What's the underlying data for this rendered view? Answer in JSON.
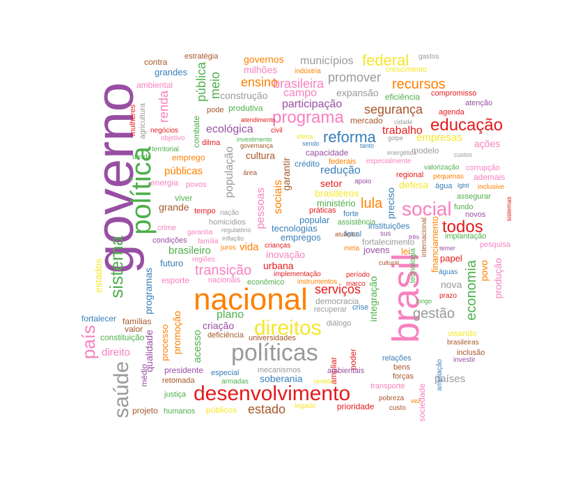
{
  "palette": {
    "purple": "#984ea3",
    "orange": "#ff7f00",
    "red": "#e41a1c",
    "green": "#4daf4a",
    "pink": "#f781bf",
    "blue": "#377eb8",
    "brown": "#a65628",
    "gray": "#999999",
    "yellow": "#f5e62a"
  },
  "words": [
    {
      "text": "governo",
      "color": "purple"
    },
    {
      "text": "nacional",
      "color": "orange"
    },
    {
      "text": "brasil",
      "color": "pink"
    },
    {
      "text": "desenvolvimento",
      "color": "red"
    },
    {
      "text": "política",
      "color": "green"
    },
    {
      "text": "políticas",
      "color": "gray"
    },
    {
      "text": "direitos",
      "color": "yellow"
    },
    {
      "text": "saúde",
      "color": "gray"
    },
    {
      "text": "sistema",
      "color": "green"
    },
    {
      "text": "social",
      "color": "pink"
    },
    {
      "text": "educação",
      "color": "red"
    },
    {
      "text": "programa",
      "color": "pink"
    },
    {
      "text": "reforma",
      "color": "blue"
    },
    {
      "text": "federal",
      "color": "yellow"
    },
    {
      "text": "todos",
      "color": "red"
    },
    {
      "text": "lula",
      "color": "orange"
    },
    {
      "text": "país",
      "color": "pink"
    },
    {
      "text": "recursos",
      "color": "orange"
    },
    {
      "text": "economia",
      "color": "green"
    },
    {
      "text": "transição",
      "color": "pink"
    },
    {
      "text": "gestão",
      "color": "gray"
    },
    {
      "text": "estado",
      "color": "brown"
    },
    {
      "text": "segurança",
      "color": "brown"
    },
    {
      "text": "promover",
      "color": "gray"
    },
    {
      "text": "renda",
      "color": "pink"
    },
    {
      "text": "brasileira",
      "color": "pink"
    },
    {
      "text": "ensino",
      "color": "orange"
    },
    {
      "text": "serviços",
      "color": "red"
    },
    {
      "text": "pública",
      "color": "green"
    },
    {
      "text": "meio",
      "color": "green"
    },
    {
      "text": "campo",
      "color": "pink"
    },
    {
      "text": "municípios",
      "color": "gray"
    },
    {
      "text": "governos",
      "color": "orange"
    },
    {
      "text": "milhões",
      "color": "pink"
    },
    {
      "text": "participação",
      "color": "purple"
    },
    {
      "text": "expansão",
      "color": "gray"
    },
    {
      "text": "construção",
      "color": "gray"
    },
    {
      "text": "ecológica",
      "color": "purple"
    },
    {
      "text": "trabalho",
      "color": "red"
    },
    {
      "text": "empresas",
      "color": "yellow"
    },
    {
      "text": "ações",
      "color": "pink"
    },
    {
      "text": "mercado",
      "color": "brown"
    },
    {
      "text": "cultura",
      "color": "brown"
    },
    {
      "text": "redução",
      "color": "blue"
    },
    {
      "text": "setor",
      "color": "red"
    },
    {
      "text": "sociais",
      "color": "orange"
    },
    {
      "text": "pessoas",
      "color": "pink"
    },
    {
      "text": "população",
      "color": "gray"
    },
    {
      "text": "garantir",
      "color": "brown"
    },
    {
      "text": "públicas",
      "color": "orange"
    },
    {
      "text": "grande",
      "color": "brown"
    },
    {
      "text": "brasileiros",
      "color": "yellow"
    },
    {
      "text": "defesa",
      "color": "yellow"
    },
    {
      "text": "preciso",
      "color": "blue"
    },
    {
      "text": "vida",
      "color": "orange"
    },
    {
      "text": "brasileiro",
      "color": "green"
    },
    {
      "text": "inovação",
      "color": "pink"
    },
    {
      "text": "urbana",
      "color": "red"
    },
    {
      "text": "plano",
      "color": "green"
    },
    {
      "text": "criação",
      "color": "purple"
    },
    {
      "text": "futuro",
      "color": "blue"
    },
    {
      "text": "estados",
      "color": "yellow"
    },
    {
      "text": "programas",
      "color": "blue"
    },
    {
      "text": "produção",
      "color": "pink"
    },
    {
      "text": "países",
      "color": "gray"
    },
    {
      "text": "soberania",
      "color": "blue"
    },
    {
      "text": "qualidade",
      "color": "purple"
    },
    {
      "text": "nova",
      "color": "gray"
    },
    {
      "text": "povo",
      "color": "orange"
    },
    {
      "text": "direito",
      "color": "pink"
    },
    {
      "text": "acesso",
      "color": "green"
    },
    {
      "text": "promoção",
      "color": "orange"
    },
    {
      "text": "processo",
      "color": "orange"
    },
    {
      "text": "integração",
      "color": "green"
    },
    {
      "text": "financiamento",
      "color": "orange"
    },
    {
      "text": "tecnologias",
      "color": "blue"
    },
    {
      "text": "empregos",
      "color": "blue"
    },
    {
      "text": "ministério",
      "color": "green"
    },
    {
      "text": "popular",
      "color": "blue"
    },
    {
      "text": "instituições",
      "color": "blue"
    },
    {
      "text": "fortalecimento",
      "color": "gray"
    },
    {
      "text": "jovens",
      "color": "purple"
    },
    {
      "text": "lei",
      "color": "orange"
    },
    {
      "text": "papel",
      "color": "red"
    },
    {
      "text": "ambiental",
      "color": "pink"
    },
    {
      "text": "grandes",
      "color": "blue"
    },
    {
      "text": "contra",
      "color": "brown"
    },
    {
      "text": "estratégia",
      "color": "brown"
    },
    {
      "text": "gastos",
      "color": "gray"
    },
    {
      "text": "crescimento",
      "color": "yellow"
    },
    {
      "text": "eficiência",
      "color": "green"
    },
    {
      "text": "compromisso",
      "color": "red"
    },
    {
      "text": "atenção",
      "color": "purple"
    },
    {
      "text": "agenda",
      "color": "red"
    },
    {
      "text": "indústria",
      "color": "orange"
    },
    {
      "text": "produtiva",
      "color": "green"
    },
    {
      "text": "pode",
      "color": "brown"
    },
    {
      "text": "mulheres",
      "color": "red"
    },
    {
      "text": "agricultura",
      "color": "gray"
    },
    {
      "text": "combate",
      "color": "green"
    },
    {
      "text": "capacidade",
      "color": "purple"
    },
    {
      "text": "crédito",
      "color": "blue"
    },
    {
      "text": "federais",
      "color": "orange"
    },
    {
      "text": "modelo",
      "color": "gray"
    },
    {
      "text": "regional",
      "color": "red"
    },
    {
      "text": "água",
      "color": "blue"
    },
    {
      "text": "valorização",
      "color": "green"
    },
    {
      "text": "corrupção",
      "color": "pink"
    },
    {
      "text": "ademais",
      "color": "pink"
    },
    {
      "text": "assegurar",
      "color": "green"
    },
    {
      "text": "fundo",
      "color": "green"
    },
    {
      "text": "novos",
      "color": "purple"
    },
    {
      "text": "implantação",
      "color": "green"
    },
    {
      "text": "pesquisa",
      "color": "pink"
    },
    {
      "text": "emprego",
      "color": "orange"
    },
    {
      "text": "energia",
      "color": "pink"
    },
    {
      "text": "povos",
      "color": "pink"
    },
    {
      "text": "viver",
      "color": "green"
    },
    {
      "text": "tempo",
      "color": "red"
    },
    {
      "text": "homicídios",
      "color": "gray"
    },
    {
      "text": "crime",
      "color": "pink"
    },
    {
      "text": "condições",
      "color": "purple"
    },
    {
      "text": "garantia",
      "color": "pink"
    },
    {
      "text": "família",
      "color": "pink"
    },
    {
      "text": "regiões",
      "color": "pink"
    },
    {
      "text": "esporte",
      "color": "pink"
    },
    {
      "text": "nacionais",
      "color": "pink"
    },
    {
      "text": "econômico",
      "color": "green"
    },
    {
      "text": "implementação",
      "color": "red"
    },
    {
      "text": "instrumentos",
      "color": "orange"
    },
    {
      "text": "democracia",
      "color": "gray"
    },
    {
      "text": "recuperar",
      "color": "gray"
    },
    {
      "text": "crise",
      "color": "blue"
    },
    {
      "text": "diálogo",
      "color": "gray"
    },
    {
      "text": "universidades",
      "color": "brown"
    },
    {
      "text": "deficiência",
      "color": "brown"
    },
    {
      "text": "ampliar",
      "color": "red"
    },
    {
      "text": "poder",
      "color": "red"
    },
    {
      "text": "mecanismos",
      "color": "gray"
    },
    {
      "text": "especial",
      "color": "blue"
    },
    {
      "text": "ambientais",
      "color": "purple"
    },
    {
      "text": "relações",
      "color": "blue"
    },
    {
      "text": "bens",
      "color": "brown"
    },
    {
      "text": "forças",
      "color": "brown"
    },
    {
      "text": "transporte",
      "color": "pink"
    },
    {
      "text": "prioridade",
      "color": "red"
    },
    {
      "text": "pobreza",
      "color": "brown"
    },
    {
      "text": "custo",
      "color": "brown"
    },
    {
      "text": "sociedade",
      "color": "pink"
    },
    {
      "text": "famílias",
      "color": "brown"
    },
    {
      "text": "valor",
      "color": "brown"
    },
    {
      "text": "constituição",
      "color": "green"
    },
    {
      "text": "fortalecer",
      "color": "blue"
    },
    {
      "text": "médio",
      "color": "purple"
    },
    {
      "text": "presidente",
      "color": "purple"
    },
    {
      "text": "retomada",
      "color": "brown"
    },
    {
      "text": "justiça",
      "color": "green"
    },
    {
      "text": "projeto",
      "color": "brown"
    },
    {
      "text": "humanos",
      "color": "green"
    },
    {
      "text": "públicos",
      "color": "yellow"
    },
    {
      "text": "armadas",
      "color": "green"
    },
    {
      "text": "sentido",
      "color": "yellow"
    },
    {
      "text": "legado",
      "color": "yellow"
    },
    {
      "text": "vez",
      "color": "orange"
    },
    {
      "text": "visando",
      "color": "yellow"
    },
    {
      "text": "brasileiras",
      "color": "brown"
    },
    {
      "text": "inclusão",
      "color": "brown"
    },
    {
      "text": "investir",
      "color": "purple"
    },
    {
      "text": "ampliação",
      "color": "blue"
    },
    {
      "text": "prazo",
      "color": "red"
    },
    {
      "text": "águas",
      "color": "blue"
    },
    {
      "text": "longo",
      "color": "green"
    },
    {
      "text": "temer",
      "color": "purple"
    },
    {
      "text": "internacional",
      "color": "brown"
    },
    {
      "text": "tecnologia",
      "color": "green"
    },
    {
      "text": "cultural",
      "color": "brown"
    },
    {
      "text": "período",
      "color": "red"
    },
    {
      "text": "marco",
      "color": "red"
    },
    {
      "text": "atuação",
      "color": "brown"
    },
    {
      "text": "meta",
      "color": "orange"
    },
    {
      "text": "crianças",
      "color": "red"
    },
    {
      "text": "juros",
      "color": "orange"
    },
    {
      "text": "regulatório",
      "color": "gray"
    },
    {
      "text": "inflação",
      "color": "gray"
    },
    {
      "text": "nação",
      "color": "gray"
    },
    {
      "text": "práticas",
      "color": "red"
    },
    {
      "text": "forte",
      "color": "blue"
    },
    {
      "text": "assistência",
      "color": "green"
    },
    {
      "text": "fiscal",
      "color": "blue"
    },
    {
      "text": "sus",
      "color": "purple"
    },
    {
      "text": "três",
      "color": "purple"
    },
    {
      "text": "apoio",
      "color": "purple"
    },
    {
      "text": "área",
      "color": "brown"
    },
    {
      "text": "desde",
      "color": "green"
    },
    {
      "text": "territorial",
      "color": "green"
    },
    {
      "text": "objetivo",
      "color": "pink"
    },
    {
      "text": "negócios",
      "color": "red"
    },
    {
      "text": "dilma",
      "color": "red"
    },
    {
      "text": "atendimento",
      "color": "red"
    },
    {
      "text": "governança",
      "color": "brown"
    },
    {
      "text": "investimento",
      "color": "green"
    },
    {
      "text": "civil",
      "color": "red"
    },
    {
      "text": "oferta",
      "color": "yellow"
    },
    {
      "text": "sendo",
      "color": "blue"
    },
    {
      "text": "tanto",
      "color": "blue"
    },
    {
      "text": "golpe",
      "color": "gray"
    },
    {
      "text": "cidade",
      "color": "gray"
    },
    {
      "text": "especialmente",
      "color": "pink"
    },
    {
      "text": "energética",
      "color": "gray"
    },
    {
      "text": "custos",
      "color": "gray"
    },
    {
      "text": "pequenas",
      "color": "orange"
    },
    {
      "text": "lgbti",
      "color": "blue"
    },
    {
      "text": "inclusive",
      "color": "orange"
    },
    {
      "text": "sistemas",
      "color": "red"
    },
    {
      "text": "regulação",
      "color": "gray"
    },
    {
      "text": "união",
      "color": "red"
    },
    {
      "text": "violência",
      "color": "green"
    }
  ]
}
